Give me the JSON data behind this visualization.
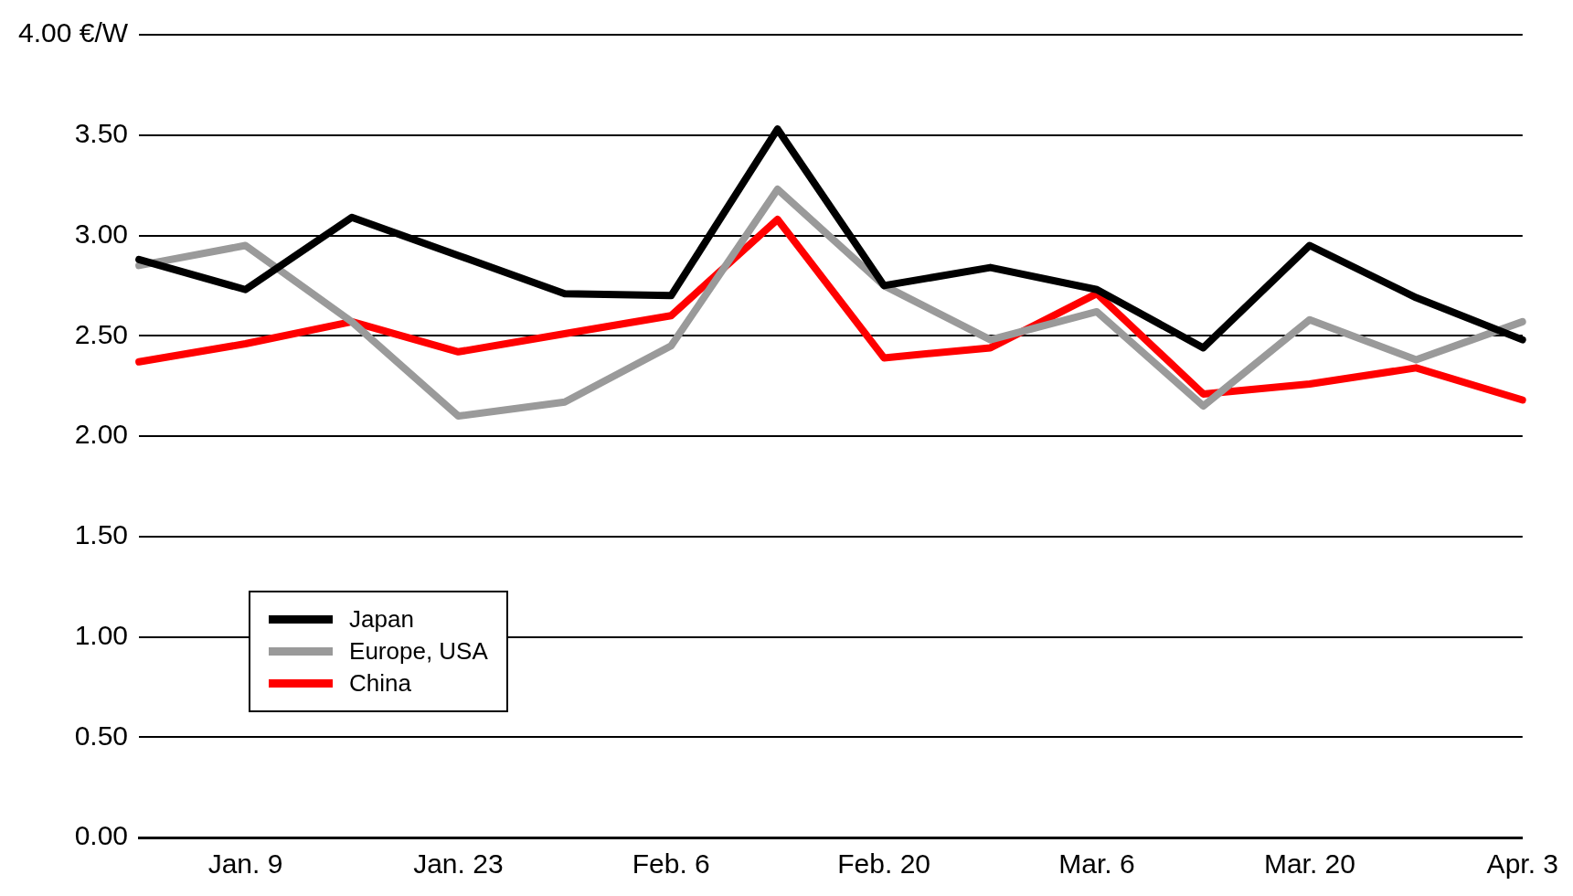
{
  "chart_data": {
    "type": "line",
    "categories": [
      null,
      "Jan. 9",
      null,
      "Jan. 23",
      null,
      "Feb. 6",
      null,
      "Feb. 20",
      null,
      "Mar. 6",
      null,
      "Mar. 20",
      null,
      "Apr. 3"
    ],
    "series": [
      {
        "name": "Japan",
        "color": "#000000",
        "values": [
          2.88,
          2.73,
          3.09,
          2.9,
          2.71,
          2.7,
          3.53,
          2.75,
          2.84,
          2.73,
          2.44,
          2.95,
          2.69,
          2.48
        ]
      },
      {
        "name": "Europe, USA",
        "color": "#9a9a9a",
        "values": [
          2.85,
          2.95,
          2.57,
          2.1,
          2.17,
          2.45,
          3.23,
          2.75,
          2.48,
          2.62,
          2.15,
          2.58,
          2.38,
          2.57
        ]
      },
      {
        "name": "China",
        "color": "#ff0000",
        "values": [
          2.37,
          2.46,
          2.57,
          2.42,
          2.51,
          2.6,
          3.08,
          2.39,
          2.44,
          2.71,
          2.21,
          2.26,
          2.34,
          2.18
        ]
      }
    ],
    "ylim": [
      0,
      4
    ],
    "yticks": [
      {
        "value": 0,
        "label": "0.00"
      },
      {
        "value": 0.5,
        "label": "0.50"
      },
      {
        "value": 1,
        "label": "1.00"
      },
      {
        "value": 1.5,
        "label": "1.50"
      },
      {
        "value": 2,
        "label": "2.00"
      },
      {
        "value": 2.5,
        "label": "2.50"
      },
      {
        "value": 3,
        "label": "3.00"
      },
      {
        "value": 3.5,
        "label": "3.50"
      },
      {
        "value": 4,
        "label": "4.00 €/W"
      }
    ],
    "grid": "y",
    "legend": "bottom left",
    "marker": "none",
    "line_style": "solid"
  }
}
